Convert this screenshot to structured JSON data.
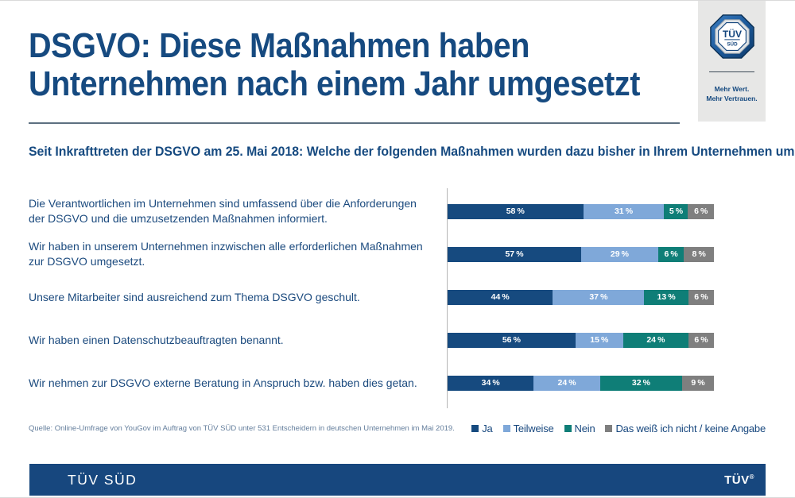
{
  "header": {
    "title": "DSGVO: Diese Maßnahmen haben\nUnternehmen nach einem Jahr umgesetzt",
    "subtitle": "Seit Inkrafttreten der DSGVO am 25. Mai 2018: Welche der folgenden Maßnahmen wurden dazu bisher in Ihrem Unternehmen umgesetzt?"
  },
  "logo_box": {
    "octagon_line1": "TÜV",
    "octagon_line2": "SÜD",
    "slogan": "Mehr Wert.\nMehr Vertrauen."
  },
  "chart_data": {
    "type": "bar",
    "orientation": "horizontal",
    "stacked": true,
    "unit": "%",
    "xlim": [
      0,
      100
    ],
    "value_label_suffix": " %",
    "legend_position": "bottom-right",
    "categories": [
      "Die Verantwortlichen im Unternehmen sind umfassend über die Anforderungen der DSGVO und die umzusetzenden Maßnahmen informiert.",
      "Wir haben in unserem Unternehmen inzwischen alle erforderlichen Maßnahmen zur DSGVO umgesetzt.",
      "Unsere Mitarbeiter sind ausreichend zum Thema DSGVO geschult.",
      "Wir haben einen Datenschutzbeauftragten benannt.",
      "Wir nehmen zur DSGVO externe Beratung in Anspruch bzw. haben dies getan."
    ],
    "series": [
      {
        "name": "Ja",
        "color": "#164a7f",
        "values": [
          58,
          57,
          44,
          56,
          34
        ]
      },
      {
        "name": "Teilweise",
        "color": "#7fa8d9",
        "values": [
          31,
          29,
          37,
          15,
          24
        ]
      },
      {
        "name": "Nein",
        "color": "#0f7e77",
        "values": [
          5,
          6,
          13,
          24,
          32
        ]
      },
      {
        "name": "Das weiß ich nicht / keine Angabe",
        "color": "#7f7f7f",
        "values": [
          6,
          8,
          6,
          6,
          9
        ]
      }
    ]
  },
  "source": "Quelle: Online-Umfrage von YouGov im Auftrag von TÜV SÜD unter 531 Entscheidern in deutschen Unternehmen im Mai 2019.",
  "footer": {
    "brand": "TÜV SÜD",
    "logo_text": "TÜV",
    "registered_mark": "®"
  },
  "colors": {
    "brand_navy": "#164a80",
    "footer_blue": "#17477e",
    "logo_panel_gray": "#e7e7e6",
    "axis_gray": "#b5b5b5",
    "source_text": "#647e9c"
  }
}
